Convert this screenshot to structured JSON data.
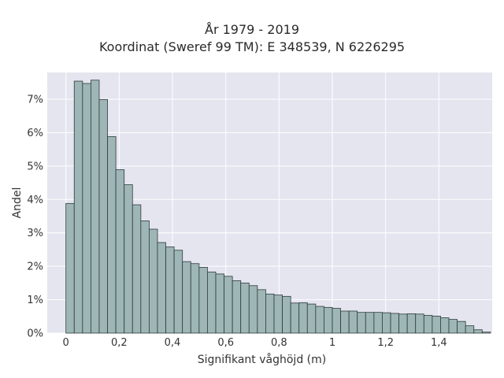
{
  "chart_data": {
    "type": "bar",
    "title_line1": "År 1979 - 2019",
    "title_line2": "Koordinat (Sweref 99 TM): E 348539, N 6226295",
    "xlabel": "Signifikant våghöjd (m)",
    "ylabel": "Andel",
    "xlim": [
      -0.07,
      1.6
    ],
    "ylim": [
      0,
      7.8
    ],
    "bin_width": 0.03125,
    "bin_start": 0.0,
    "values_percent": [
      3.88,
      7.54,
      7.47,
      7.57,
      6.99,
      5.88,
      4.89,
      4.44,
      3.84,
      3.36,
      3.11,
      2.71,
      2.58,
      2.48,
      2.14,
      2.08,
      1.97,
      1.83,
      1.77,
      1.7,
      1.57,
      1.5,
      1.42,
      1.3,
      1.17,
      1.14,
      1.1,
      0.9,
      0.91,
      0.87,
      0.8,
      0.77,
      0.74,
      0.66,
      0.66,
      0.62,
      0.62,
      0.62,
      0.61,
      0.59,
      0.57,
      0.58,
      0.57,
      0.53,
      0.51,
      0.46,
      0.41,
      0.35,
      0.22,
      0.1,
      0.03
    ],
    "x_ticks": [
      0,
      0.2,
      0.4,
      0.6,
      0.8,
      1.0,
      1.2,
      1.4
    ],
    "x_tick_labels": [
      "0",
      "0,2",
      "0,4",
      "0,6",
      "0,8",
      "1",
      "1,2",
      "1,4"
    ],
    "y_ticks": [
      0,
      1,
      2,
      3,
      4,
      5,
      6,
      7
    ],
    "y_tick_labels": [
      "0%",
      "1%",
      "2%",
      "3%",
      "4%",
      "5%",
      "6%",
      "7%"
    ],
    "grid": true,
    "colors": {
      "plot_background": "#e5e5ef",
      "bar_fill": "#9eb6b6",
      "bar_stroke": "#2f3b3b",
      "grid": "#ffffff"
    }
  }
}
